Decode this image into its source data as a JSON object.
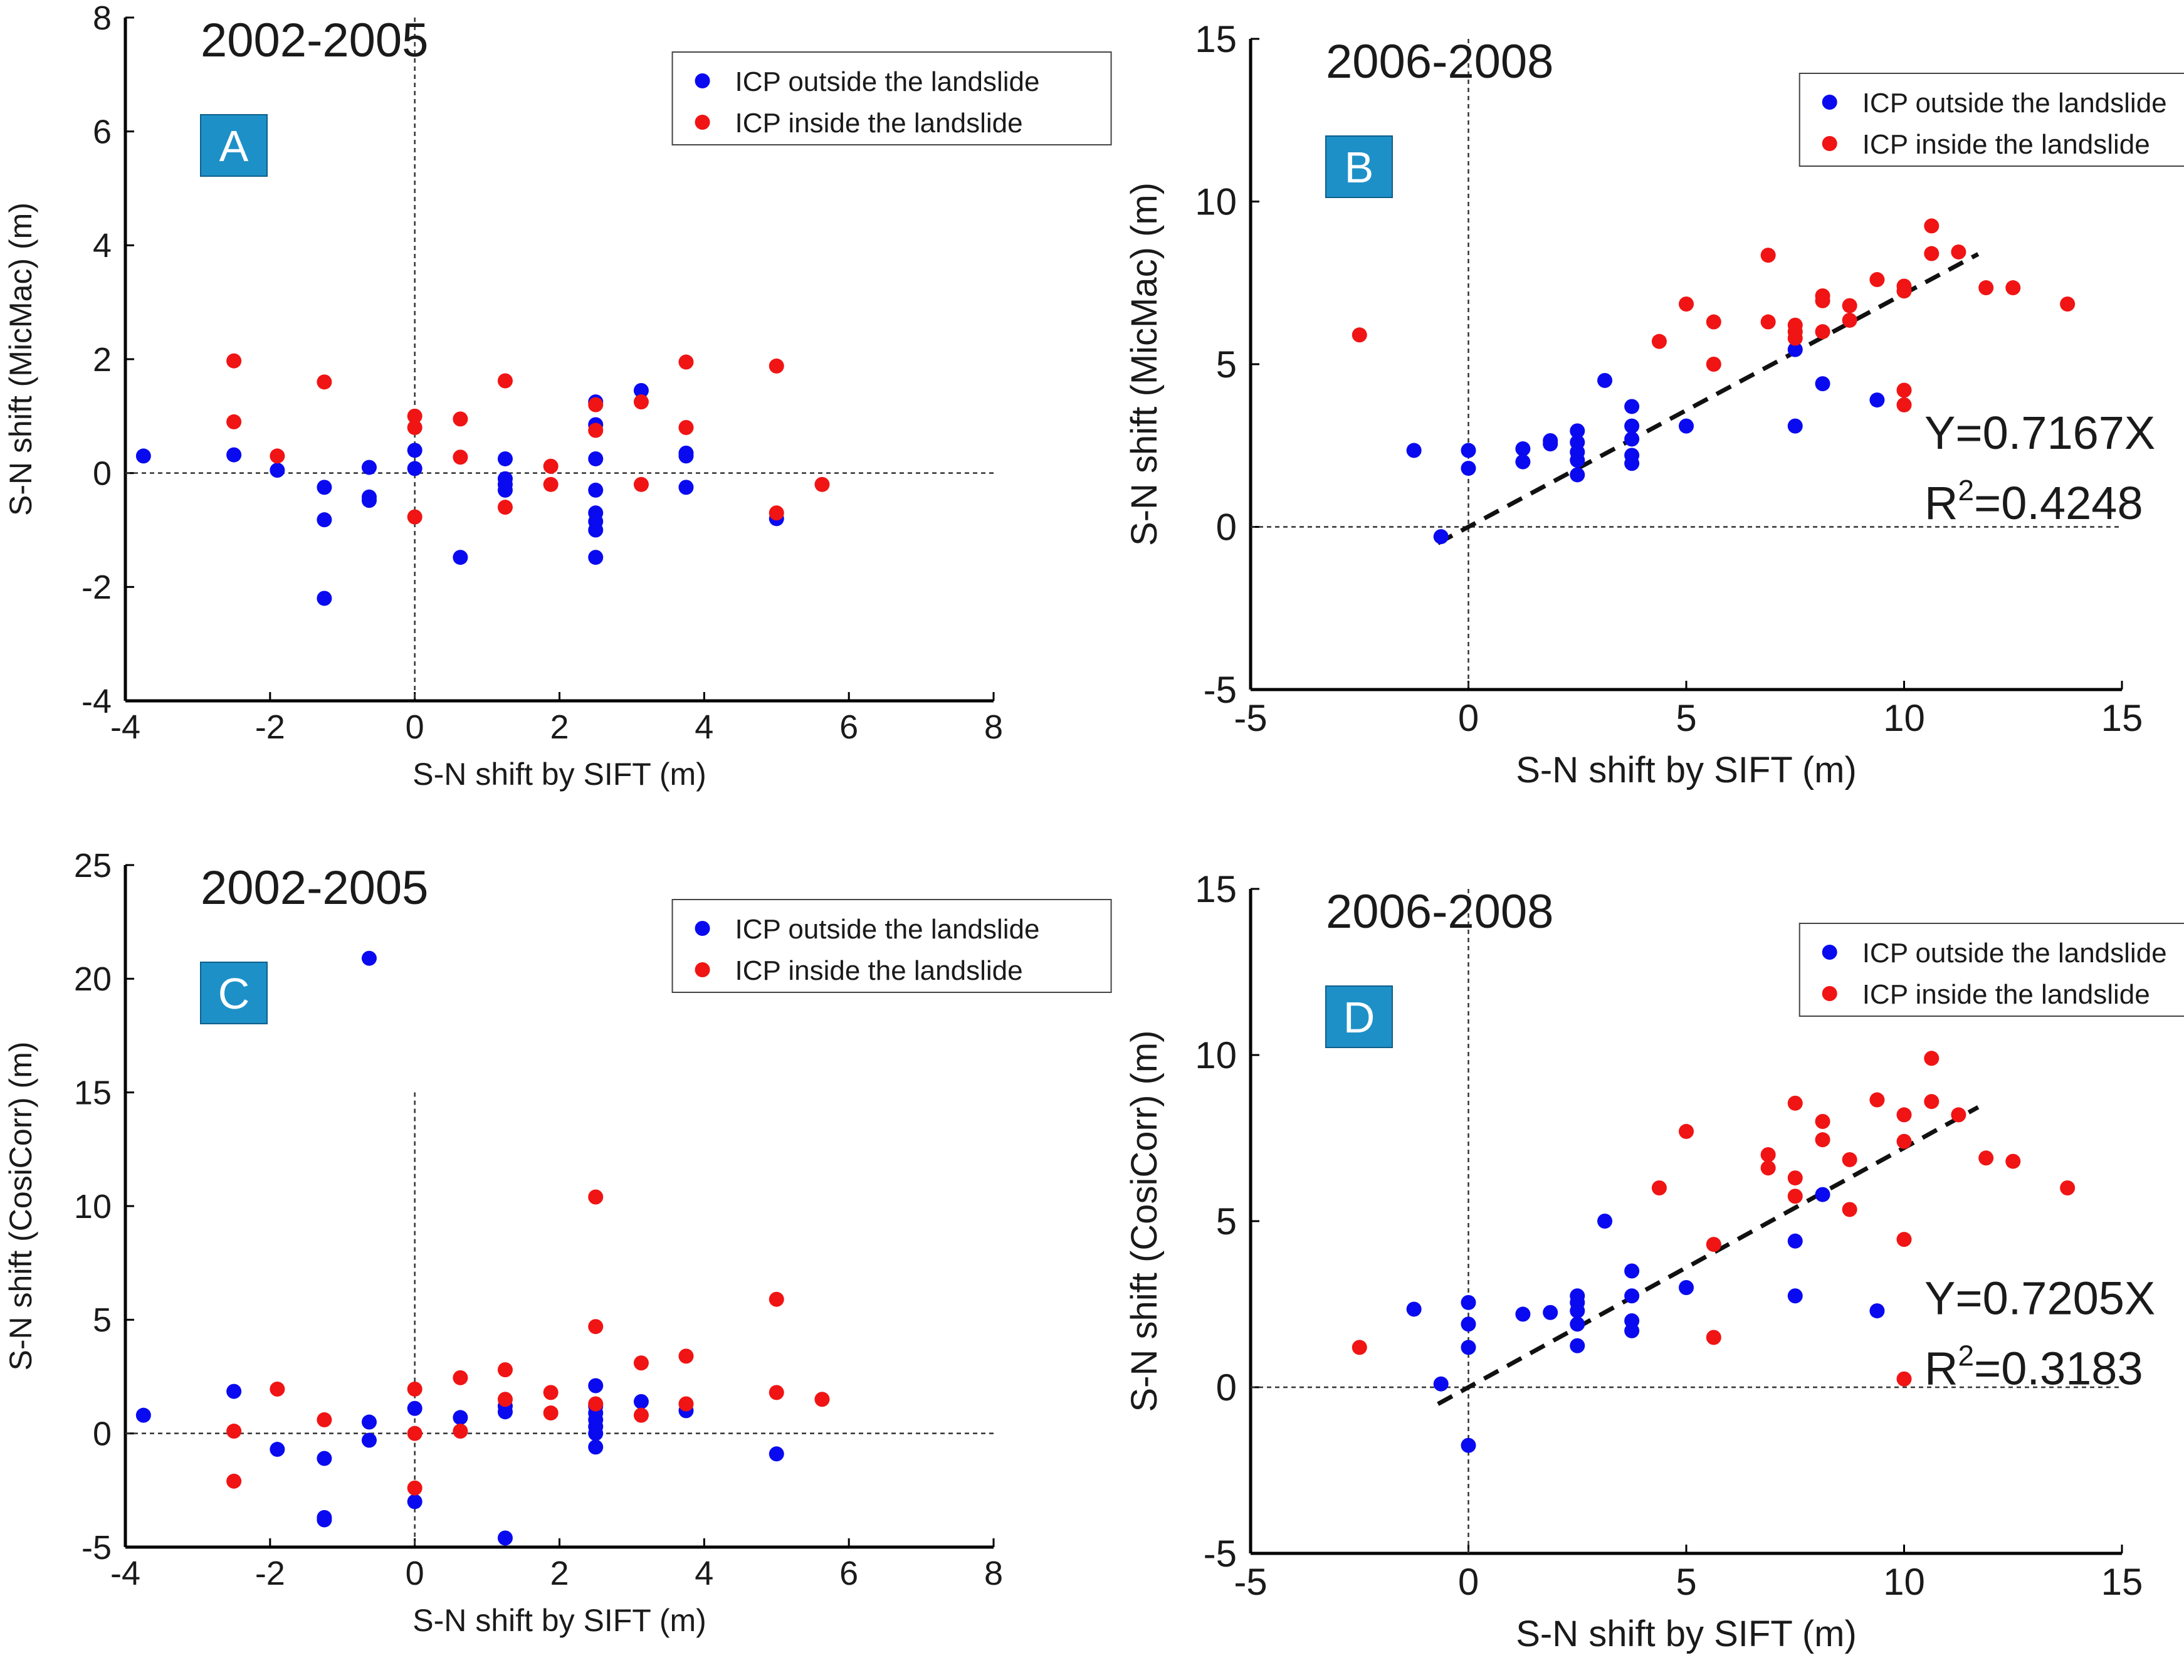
{
  "figure": {
    "colors": {
      "outside": "#0a0af0",
      "inside": "#f01414",
      "label_box": "#1e90c8",
      "axis": "#000000"
    }
  },
  "chart_data": [
    {
      "id": "A",
      "type": "scatter",
      "panel_label": "A",
      "period": "2002-2005",
      "xlabel": "S-N shift by SIFT (m)",
      "ylabel": "S-N shift (MicMac) (m)",
      "xlim": [
        -4,
        8
      ],
      "ylim": [
        -4,
        8
      ],
      "xticks": [
        -4,
        -2,
        0,
        2,
        4,
        6,
        8
      ],
      "yticks": [
        -4,
        -2,
        0,
        2,
        4,
        6,
        8
      ],
      "xtick_labels": [
        "-4",
        "-2",
        "0",
        "2",
        "4",
        "6",
        "8"
      ],
      "ytick_labels": [
        "-4",
        "-2",
        "0",
        "2",
        "4",
        "6",
        "8"
      ],
      "legend": [
        "ICP outside the landslide",
        "ICP inside the landslide"
      ],
      "series": [
        {
          "name": "ICP outside the landslide",
          "color": "#0a0af0",
          "points": [
            [
              -3.75,
              0.3
            ],
            [
              -2.5,
              0.32
            ],
            [
              -1.9,
              0.05
            ],
            [
              -1.25,
              -0.25
            ],
            [
              -1.25,
              -0.82
            ],
            [
              -1.25,
              -2.2
            ],
            [
              -0.63,
              0.1
            ],
            [
              -0.63,
              -0.42
            ],
            [
              -0.63,
              -0.48
            ],
            [
              0,
              0.4
            ],
            [
              0,
              0.08
            ],
            [
              0.63,
              -1.48
            ],
            [
              1.25,
              0.25
            ],
            [
              1.25,
              -0.1
            ],
            [
              1.25,
              -0.2
            ],
            [
              1.25,
              -0.3
            ],
            [
              2.5,
              1.25
            ],
            [
              2.5,
              0.85
            ],
            [
              2.5,
              0.25
            ],
            [
              2.5,
              -0.3
            ],
            [
              2.5,
              -0.7
            ],
            [
              2.5,
              -0.85
            ],
            [
              2.5,
              -1.0
            ],
            [
              2.5,
              -1.48
            ],
            [
              3.13,
              1.45
            ],
            [
              3.75,
              0.3
            ],
            [
              3.75,
              0.35
            ],
            [
              3.75,
              -0.25
            ],
            [
              5.0,
              -0.8
            ]
          ]
        },
        {
          "name": "ICP inside the landslide",
          "color": "#f01414",
          "points": [
            [
              -2.5,
              1.97
            ],
            [
              -2.5,
              0.9
            ],
            [
              -1.9,
              0.3
            ],
            [
              -1.25,
              1.6
            ],
            [
              0,
              1.0
            ],
            [
              0,
              0.8
            ],
            [
              0,
              -0.77
            ],
            [
              0.63,
              0.95
            ],
            [
              0.63,
              0.28
            ],
            [
              1.25,
              1.62
            ],
            [
              1.25,
              -0.6
            ],
            [
              1.88,
              0.12
            ],
            [
              1.88,
              -0.2
            ],
            [
              2.5,
              1.2
            ],
            [
              2.5,
              0.75
            ],
            [
              3.13,
              1.25
            ],
            [
              3.13,
              -0.2
            ],
            [
              3.75,
              1.95
            ],
            [
              3.75,
              0.8
            ],
            [
              5.0,
              1.88
            ],
            [
              5.0,
              -0.7
            ],
            [
              5.63,
              -0.2
            ]
          ]
        }
      ],
      "vline_x": 0,
      "hline_y": 0
    },
    {
      "id": "B",
      "type": "scatter",
      "panel_label": "B",
      "period": "2006-2008",
      "xlabel": "S-N shift by SIFT (m)",
      "ylabel": "S-N shift (MicMac) (m)",
      "xlim": [
        -5,
        15
      ],
      "ylim": [
        -5,
        15
      ],
      "xticks": [
        -5,
        0,
        5,
        10,
        15
      ],
      "yticks": [
        -5,
        0,
        5,
        10,
        15
      ],
      "xtick_labels": [
        "-5",
        "0",
        "5",
        "10",
        "15"
      ],
      "ytick_labels": [
        "-5",
        "0",
        "5",
        "10",
        "15"
      ],
      "legend": [
        "ICP outside the landslide",
        "ICP inside the landslide"
      ],
      "equation": "Y=0.7167X",
      "r2_prefix": "R",
      "r2_sup": "2",
      "r2_value": "=0.4248",
      "fit": {
        "slope": 0.7167,
        "x_range": [
          -0.7,
          11.7
        ]
      },
      "series": [
        {
          "name": "ICP outside the landslide",
          "color": "#0a0af0",
          "points": [
            [
              -1.25,
              2.35
            ],
            [
              -0.63,
              -0.3
            ],
            [
              0,
              2.35
            ],
            [
              0,
              1.8
            ],
            [
              1.25,
              2.4
            ],
            [
              1.25,
              2.0
            ],
            [
              1.88,
              2.65
            ],
            [
              1.88,
              2.55
            ],
            [
              2.5,
              2.95
            ],
            [
              2.5,
              2.6
            ],
            [
              2.5,
              2.3
            ],
            [
              2.5,
              2.05
            ],
            [
              2.5,
              1.6
            ],
            [
              3.13,
              4.5
            ],
            [
              3.75,
              3.7
            ],
            [
              3.75,
              3.1
            ],
            [
              3.75,
              2.7
            ],
            [
              3.75,
              2.2
            ],
            [
              3.75,
              1.95
            ],
            [
              5.0,
              3.1
            ],
            [
              7.5,
              5.45
            ],
            [
              7.5,
              3.1
            ],
            [
              8.13,
              4.4
            ],
            [
              9.38,
              3.9
            ]
          ]
        },
        {
          "name": "ICP inside the landslide",
          "color": "#f01414",
          "points": [
            [
              -2.5,
              5.9
            ],
            [
              4.38,
              5.7
            ],
            [
              5.0,
              6.85
            ],
            [
              5.63,
              6.3
            ],
            [
              5.63,
              5.0
            ],
            [
              6.88,
              8.35
            ],
            [
              6.88,
              6.3
            ],
            [
              7.5,
              6.2
            ],
            [
              7.5,
              6.0
            ],
            [
              7.5,
              5.8
            ],
            [
              8.13,
              7.1
            ],
            [
              8.13,
              6.95
            ],
            [
              8.13,
              6.0
            ],
            [
              8.75,
              6.8
            ],
            [
              8.75,
              6.35
            ],
            [
              9.38,
              7.6
            ],
            [
              10.0,
              7.4
            ],
            [
              10.0,
              7.25
            ],
            [
              10.0,
              4.2
            ],
            [
              10.0,
              3.75
            ],
            [
              10.63,
              9.25
            ],
            [
              10.63,
              8.4
            ],
            [
              11.25,
              8.45
            ],
            [
              11.88,
              7.35
            ],
            [
              12.5,
              7.35
            ],
            [
              13.75,
              6.85
            ]
          ]
        }
      ],
      "vline_x": 0,
      "hline_y": 0
    },
    {
      "id": "C",
      "type": "scatter",
      "panel_label": "C",
      "period": "2002-2005",
      "xlabel": "S-N shift by SIFT (m)",
      "ylabel": "S-N shift (CosiCorr) (m)",
      "xlim": [
        -4,
        8
      ],
      "ylim": [
        -5,
        25
      ],
      "xticks": [
        -4,
        -2,
        0,
        2,
        4,
        6,
        8
      ],
      "yticks": [
        -5,
        0,
        5,
        10,
        15,
        20,
        25
      ],
      "xtick_labels": [
        "-4",
        "-2",
        "0",
        "2",
        "4",
        "6",
        "8"
      ],
      "ytick_labels": [
        "-5",
        "0",
        "5",
        "10",
        "15",
        "20",
        "25"
      ],
      "legend": [
        "ICP outside the landslide",
        "ICP inside the landslide"
      ],
      "series": [
        {
          "name": "ICP outside the landslide",
          "color": "#0a0af0",
          "points": [
            [
              -3.75,
              0.8
            ],
            [
              -2.5,
              1.85
            ],
            [
              -1.9,
              -0.7
            ],
            [
              -1.25,
              -1.1
            ],
            [
              -1.25,
              -3.7
            ],
            [
              -1.25,
              -3.8
            ],
            [
              -0.63,
              20.9
            ],
            [
              -0.63,
              0.5
            ],
            [
              -0.63,
              -0.3
            ],
            [
              0,
              1.1
            ],
            [
              0,
              -3.0
            ],
            [
              0.63,
              0.7
            ],
            [
              1.25,
              1.2
            ],
            [
              1.25,
              0.95
            ],
            [
              1.25,
              -4.6
            ],
            [
              2.5,
              2.1
            ],
            [
              2.5,
              1.2
            ],
            [
              2.5,
              0.9
            ],
            [
              2.5,
              0.6
            ],
            [
              2.5,
              0.3
            ],
            [
              2.5,
              0.0
            ],
            [
              2.5,
              -0.6
            ],
            [
              3.13,
              1.4
            ],
            [
              3.75,
              1.0
            ],
            [
              5.0,
              -0.9
            ]
          ]
        },
        {
          "name": "ICP inside the landslide",
          "color": "#f01414",
          "points": [
            [
              -2.5,
              0.1
            ],
            [
              -2.5,
              -2.1
            ],
            [
              -1.9,
              1.95
            ],
            [
              -1.25,
              0.6
            ],
            [
              0,
              1.95
            ],
            [
              0,
              0.0
            ],
            [
              0,
              -2.4
            ],
            [
              0.63,
              2.45
            ],
            [
              0.63,
              0.1
            ],
            [
              1.25,
              2.8
            ],
            [
              1.25,
              1.5
            ],
            [
              1.88,
              1.8
            ],
            [
              1.88,
              0.9
            ],
            [
              2.5,
              10.4
            ],
            [
              2.5,
              4.7
            ],
            [
              2.5,
              1.3
            ],
            [
              3.13,
              3.1
            ],
            [
              3.13,
              0.8
            ],
            [
              3.75,
              3.4
            ],
            [
              3.75,
              1.3
            ],
            [
              5.0,
              5.9
            ],
            [
              5.0,
              1.8
            ],
            [
              5.63,
              1.5
            ]
          ]
        }
      ],
      "vline_x": 0,
      "vline_ymax": 15,
      "hline_y": 0
    },
    {
      "id": "D",
      "type": "scatter",
      "panel_label": "D",
      "period": "2006-2008",
      "xlabel": "S-N shift by SIFT (m)",
      "ylabel": "S-N shift (CosiCorr) (m)",
      "xlim": [
        -5,
        15
      ],
      "ylim": [
        -5,
        15
      ],
      "xticks": [
        -5,
        0,
        5,
        10,
        15
      ],
      "yticks": [
        -5,
        0,
        5,
        10,
        15
      ],
      "xtick_labels": [
        "-5",
        "0",
        "5",
        "10",
        "15"
      ],
      "ytick_labels": [
        "-5",
        "0",
        "5",
        "10",
        "15"
      ],
      "legend": [
        "ICP outside the landslide",
        "ICP inside the landslide"
      ],
      "equation": "Y=0.7205X",
      "r2_prefix": "R",
      "r2_sup": "2",
      "r2_value": "=0.3183",
      "fit": {
        "slope": 0.7205,
        "x_range": [
          -0.7,
          11.7
        ]
      },
      "series": [
        {
          "name": "ICP outside the landslide",
          "color": "#0a0af0",
          "points": [
            [
              -1.25,
              2.35
            ],
            [
              -0.63,
              0.1
            ],
            [
              0,
              2.55
            ],
            [
              0,
              1.9
            ],
            [
              0,
              1.2
            ],
            [
              0,
              -1.75
            ],
            [
              1.25,
              2.2
            ],
            [
              1.88,
              2.25
            ],
            [
              2.5,
              2.75
            ],
            [
              2.5,
              2.55
            ],
            [
              2.5,
              2.3
            ],
            [
              2.5,
              1.9
            ],
            [
              2.5,
              1.25
            ],
            [
              3.13,
              5.0
            ],
            [
              3.75,
              3.5
            ],
            [
              3.75,
              2.75
            ],
            [
              3.75,
              2.0
            ],
            [
              3.75,
              1.7
            ],
            [
              5.0,
              3.0
            ],
            [
              7.5,
              4.4
            ],
            [
              7.5,
              2.75
            ],
            [
              8.13,
              5.8
            ],
            [
              9.38,
              2.3
            ]
          ]
        },
        {
          "name": "ICP inside the landslide",
          "color": "#f01414",
          "points": [
            [
              -2.5,
              1.2
            ],
            [
              4.38,
              6.0
            ],
            [
              5.0,
              7.7
            ],
            [
              5.63,
              4.3
            ],
            [
              5.63,
              1.5
            ],
            [
              6.88,
              7.0
            ],
            [
              6.88,
              6.6
            ],
            [
              7.5,
              8.55
            ],
            [
              7.5,
              6.3
            ],
            [
              7.5,
              5.75
            ],
            [
              8.13,
              8.0
            ],
            [
              8.13,
              7.45
            ],
            [
              8.75,
              6.85
            ],
            [
              8.75,
              5.35
            ],
            [
              9.38,
              8.65
            ],
            [
              10.0,
              8.2
            ],
            [
              10.0,
              7.4
            ],
            [
              10.0,
              4.45
            ],
            [
              10.0,
              0.25
            ],
            [
              10.63,
              9.9
            ],
            [
              10.63,
              8.6
            ],
            [
              11.25,
              8.2
            ],
            [
              11.88,
              6.9
            ],
            [
              12.5,
              6.8
            ],
            [
              13.75,
              6.0
            ]
          ]
        }
      ],
      "vline_x": 0,
      "hline_y": 0
    }
  ]
}
